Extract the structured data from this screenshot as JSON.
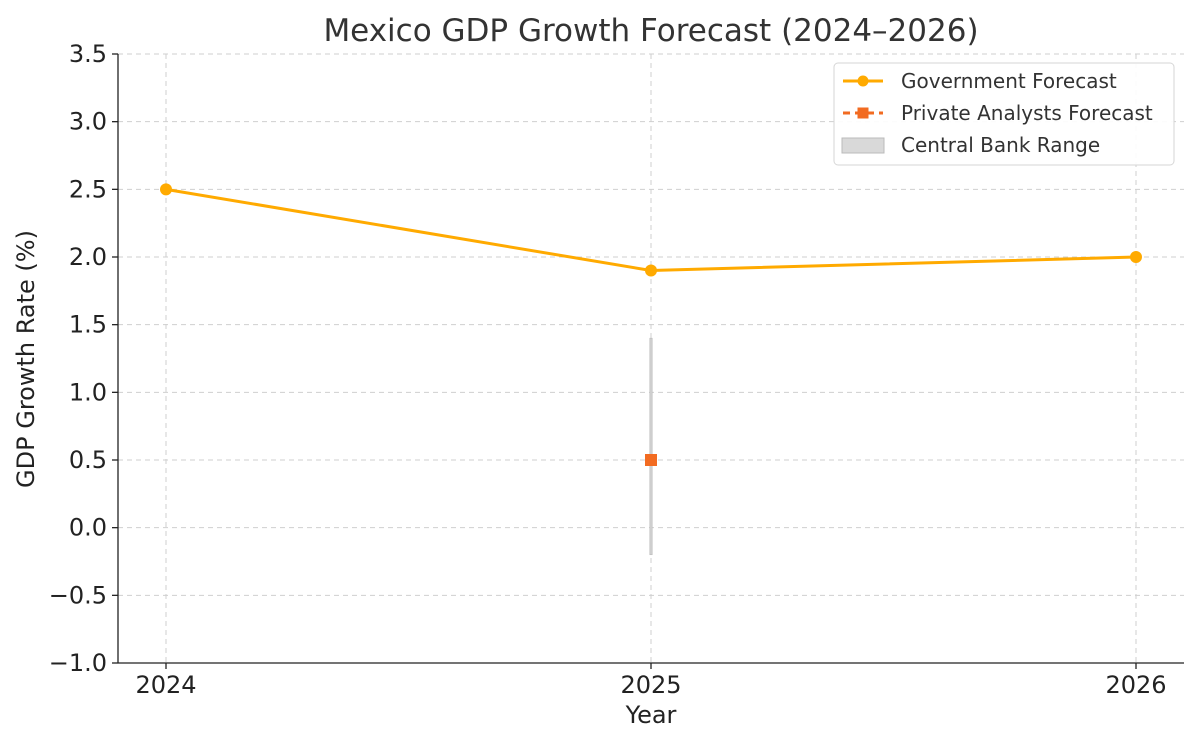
{
  "chart_data": {
    "type": "line",
    "title": "Mexico GDP Growth Forecast (2024–2026)",
    "xlabel": "Year",
    "ylabel": "GDP Growth Rate (%)",
    "categories": [
      "2024",
      "2025",
      "2026"
    ],
    "ylim": [
      -1.0,
      3.5
    ],
    "yticks": [
      -1.0,
      -0.5,
      0.0,
      0.5,
      1.0,
      1.5,
      2.0,
      2.5,
      3.0,
      3.5
    ],
    "ytick_labels": [
      "−1.0",
      "−0.5",
      "0.0",
      "0.5",
      "1.0",
      "1.5",
      "2.0",
      "2.5",
      "3.0",
      "3.5"
    ],
    "grid": true,
    "legend_position": "top-right",
    "series": [
      {
        "name": "Government Forecast",
        "style": "line-circle",
        "color": "#FFAA00",
        "x": [
          "2024",
          "2025",
          "2026"
        ],
        "values": [
          2.5,
          1.9,
          2.0
        ]
      },
      {
        "name": "Private Analysts Forecast",
        "style": "dashed-square",
        "color": "#F26B21",
        "x": [
          "2025"
        ],
        "values": [
          0.5
        ]
      },
      {
        "name": "Central Bank Range",
        "style": "range-band",
        "color": "#BBBBBB",
        "x": [
          "2025"
        ],
        "low": [
          -0.2
        ],
        "high": [
          1.4
        ]
      }
    ]
  }
}
